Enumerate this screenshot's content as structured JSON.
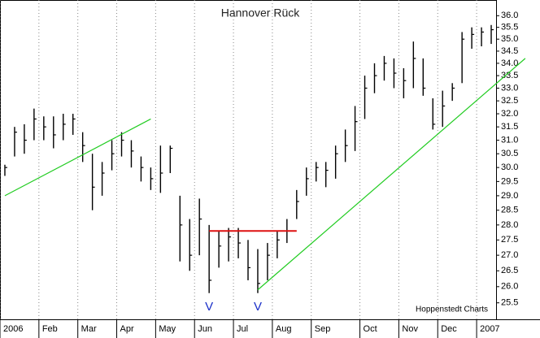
{
  "chart_data": {
    "type": "ohlc",
    "title": "Hannover Rück",
    "source": "Hoppenstedt Charts",
    "categories": [
      "2006",
      null,
      null,
      null,
      "Feb",
      null,
      null,
      null,
      "Mar",
      null,
      null,
      null,
      "Apr",
      null,
      null,
      null,
      "May",
      null,
      null,
      null,
      "Jun",
      null,
      null,
      null,
      "Jul",
      null,
      null,
      null,
      "Aug",
      null,
      null,
      null,
      "Sep",
      null,
      null,
      null,
      null,
      "Oct",
      null,
      null,
      null,
      "Nov",
      null,
      null,
      null,
      "Dec",
      null,
      null,
      null,
      "2007",
      null
    ],
    "high": [
      30.1,
      31.5,
      31.6,
      32.2,
      31.9,
      31.9,
      32.0,
      32.0,
      31.3,
      30.5,
      30.2,
      31.0,
      31.3,
      31.0,
      30.4,
      30.0,
      30.8,
      30.8,
      29.0,
      28.2,
      28.9,
      28.0,
      27.8,
      27.9,
      27.9,
      27.5,
      27.2,
      27.4,
      27.8,
      28.2,
      29.2,
      30.0,
      30.2,
      30.2,
      30.8,
      31.4,
      32.3,
      33.5,
      34.0,
      34.3,
      34.2,
      33.8,
      34.9,
      34.2,
      32.6,
      32.9,
      33.2,
      35.3,
      35.5,
      35.5,
      35.6
    ],
    "low": [
      29.7,
      30.4,
      30.5,
      31.0,
      31.0,
      30.7,
      31.0,
      31.2,
      30.2,
      28.5,
      29.0,
      29.9,
      30.4,
      30.0,
      29.5,
      29.2,
      29.1,
      29.8,
      26.8,
      26.5,
      27.0,
      25.8,
      26.6,
      26.8,
      26.9,
      26.2,
      25.8,
      26.2,
      26.9,
      27.4,
      28.2,
      29.0,
      29.5,
      29.3,
      29.6,
      30.2,
      30.6,
      31.8,
      32.8,
      33.3,
      33.0,
      32.6,
      33.0,
      32.7,
      31.4,
      31.5,
      32.5,
      33.2,
      34.6,
      34.7,
      34.8
    ],
    "close": [
      30.0,
      31.3,
      31.0,
      31.8,
      31.5,
      31.2,
      31.6,
      31.8,
      30.8,
      29.3,
      29.8,
      30.5,
      31.0,
      30.6,
      30.0,
      29.6,
      29.8,
      30.7,
      28.0,
      27.0,
      28.2,
      26.2,
      27.3,
      27.6,
      27.4,
      26.6,
      26.1,
      27.0,
      27.5,
      27.8,
      28.8,
      29.6,
      30.0,
      29.9,
      30.5,
      30.8,
      31.7,
      33.0,
      33.5,
      34.0,
      33.6,
      33.3,
      34.2,
      33.0,
      31.6,
      32.3,
      33.0,
      35.0,
      35.2,
      35.3,
      35.4
    ],
    "color": "#000000",
    "log_scale": true,
    "grid": true,
    "ylim": [
      25.0,
      36.4
    ],
    "yticks": [
      {
        "value": 25.5,
        "label": "25.5"
      },
      {
        "value": 26,
        "label": "26.0"
      },
      26.5,
      {
        "value": 27,
        "label": "27.0"
      },
      27.5,
      {
        "value": 28,
        "label": "28.0"
      },
      28.5,
      {
        "value": 29,
        "label": "29.0"
      },
      29.5,
      {
        "value": 30,
        "label": "30.0"
      },
      30.5,
      {
        "value": 31,
        "label": "31.0"
      },
      31.5,
      {
        "value": 32,
        "label": "32.0"
      },
      32.5,
      {
        "value": 33,
        "label": "33.0"
      },
      33.5,
      {
        "value": 34,
        "label": "34.0"
      },
      34.5,
      {
        "value": 35,
        "label": "35.0"
      },
      35.5,
      {
        "value": 36,
        "label": "36.0"
      }
    ],
    "trendlines": [
      {
        "x": [
          0,
          15
        ],
        "values": [
          29.0,
          31.8
        ],
        "color": "#22cc22"
      },
      {
        "x": [
          26,
          53.5
        ],
        "values": [
          25.9,
          34.2
        ],
        "color": "#22cc22"
      },
      {
        "x": [
          21,
          30
        ],
        "values": [
          27.8,
          27.8
        ],
        "color": "#dd1111"
      }
    ],
    "annotations": [
      {
        "text": "V"
      },
      {
        "text": "V"
      }
    ]
  }
}
